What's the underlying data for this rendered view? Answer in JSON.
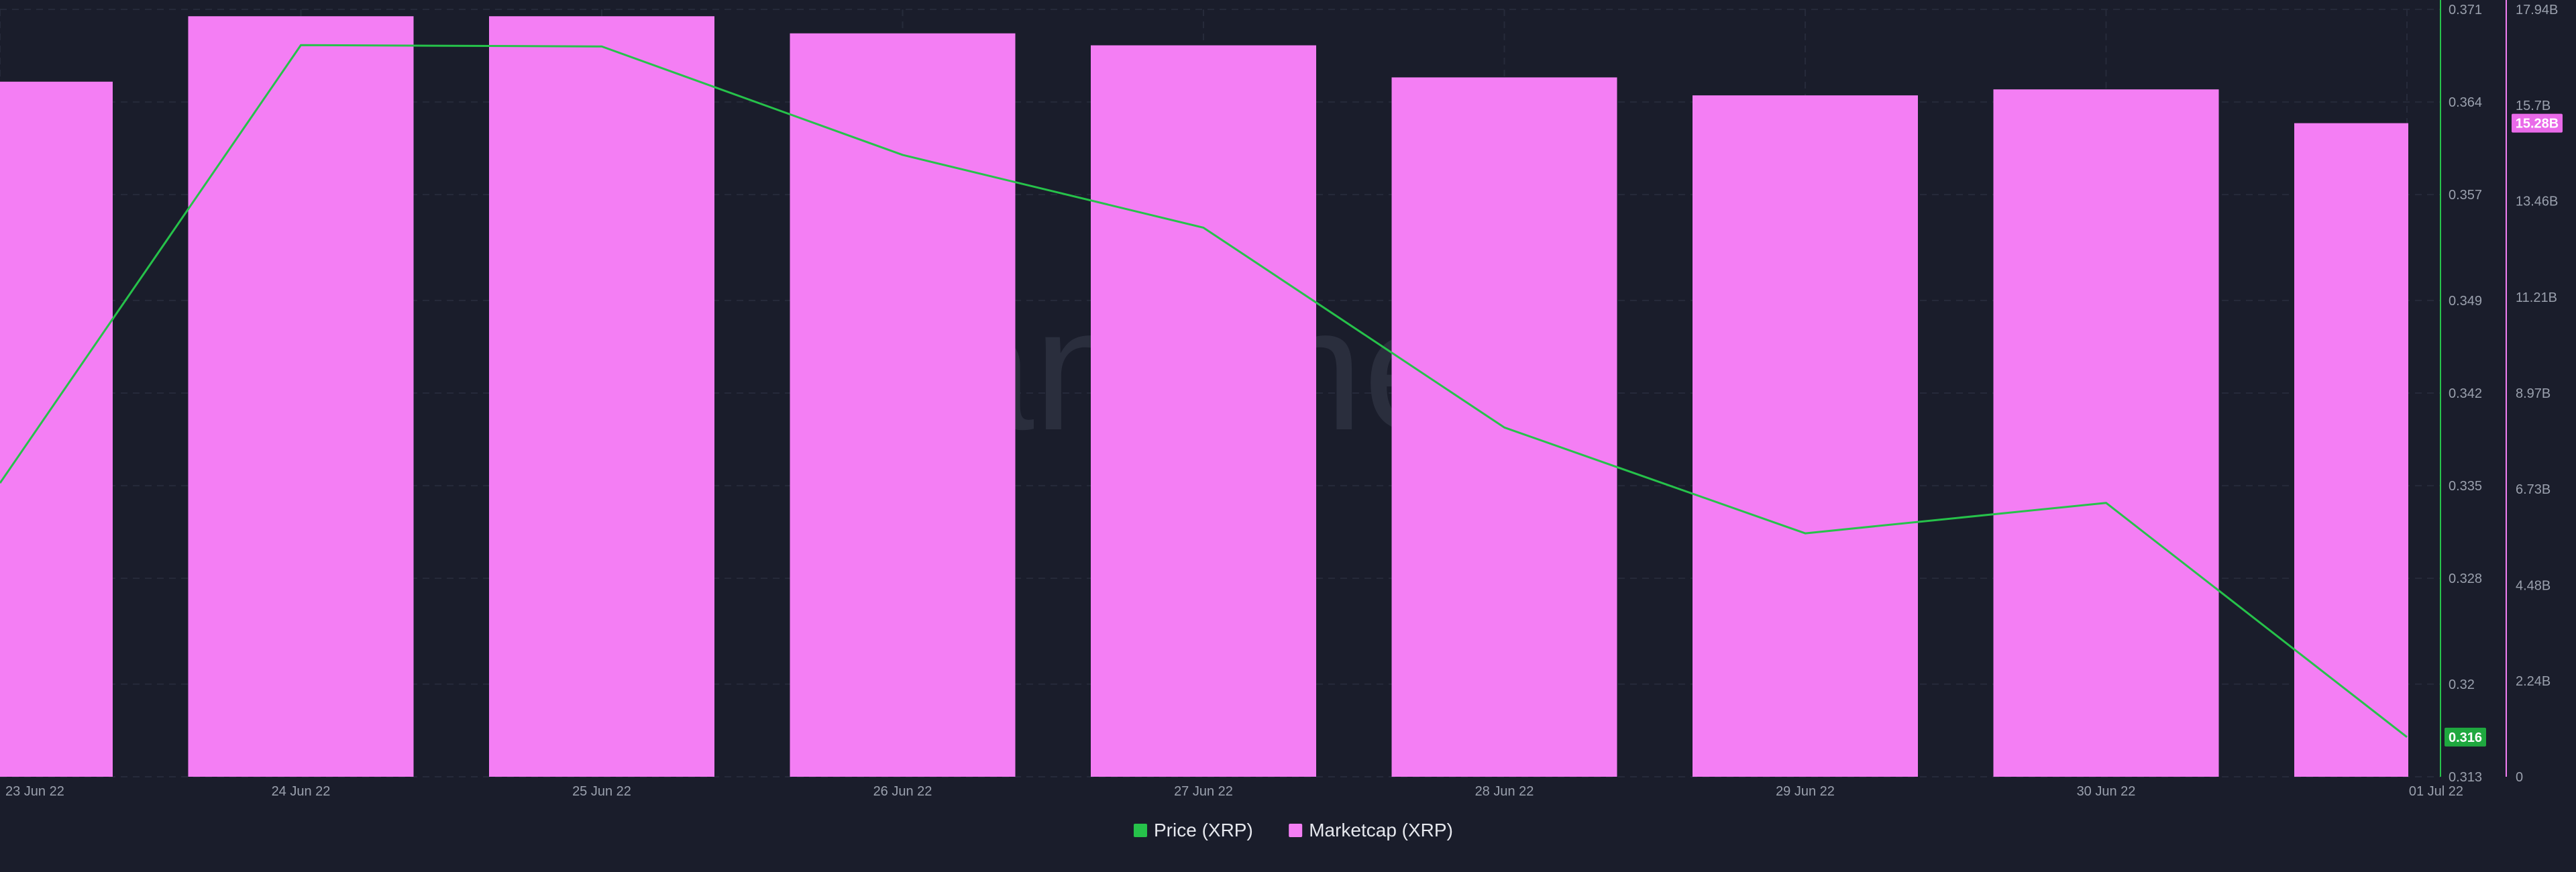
{
  "chart_data": {
    "type": "bar+line",
    "title": "",
    "watermark": "santiment",
    "categories": [
      "23 Jun 22",
      "24 Jun 22",
      "25 Jun 22",
      "26 Jun 22",
      "27 Jun 22",
      "28 Jun 22",
      "29 Jun 22",
      "30 Jun 22",
      "01 Jul 22"
    ],
    "series": [
      {
        "name": "Price (XRP)",
        "kind": "line",
        "axis": "left",
        "color": "#26c24a",
        "values": [
          0.3352,
          0.3683,
          0.3682,
          0.36,
          0.3545,
          0.3394,
          0.3314,
          0.3337,
          0.316
        ]
      },
      {
        "name": "Marketcap (XRP)",
        "kind": "bar",
        "axis": "right",
        "color": "#f47ef4",
        "values": [
          16.25,
          17.78,
          17.78,
          17.38,
          17.1,
          16.35,
          15.93,
          16.07,
          15.28
        ]
      }
    ],
    "price_axis": {
      "ticks": [
        0.371,
        0.364,
        0.357,
        0.349,
        0.342,
        0.335,
        0.328,
        0.32,
        0.313
      ],
      "tick_labels": [
        "0.371",
        "0.364",
        "0.357",
        "0.349",
        "0.342",
        "0.335",
        "0.328",
        "0.32",
        "0.313"
      ],
      "range": [
        0.313,
        0.371
      ],
      "color": "#26c24a"
    },
    "marketcap_axis": {
      "ticks": [
        17.94,
        15.7,
        13.46,
        11.21,
        8.97,
        6.73,
        4.48,
        2.24,
        0
      ],
      "tick_labels": [
        "17.94B",
        "15.7B",
        "13.46B",
        "11.21B",
        "8.97B",
        "6.73B",
        "4.48B",
        "2.24B",
        "0"
      ],
      "range": [
        0,
        17.94
      ],
      "unit": "B",
      "color": "#f47ef4"
    },
    "last_price_badge": "0.316",
    "last_marketcap_badge": "15.28B",
    "grid": true,
    "legend_position": "bottom-center"
  }
}
